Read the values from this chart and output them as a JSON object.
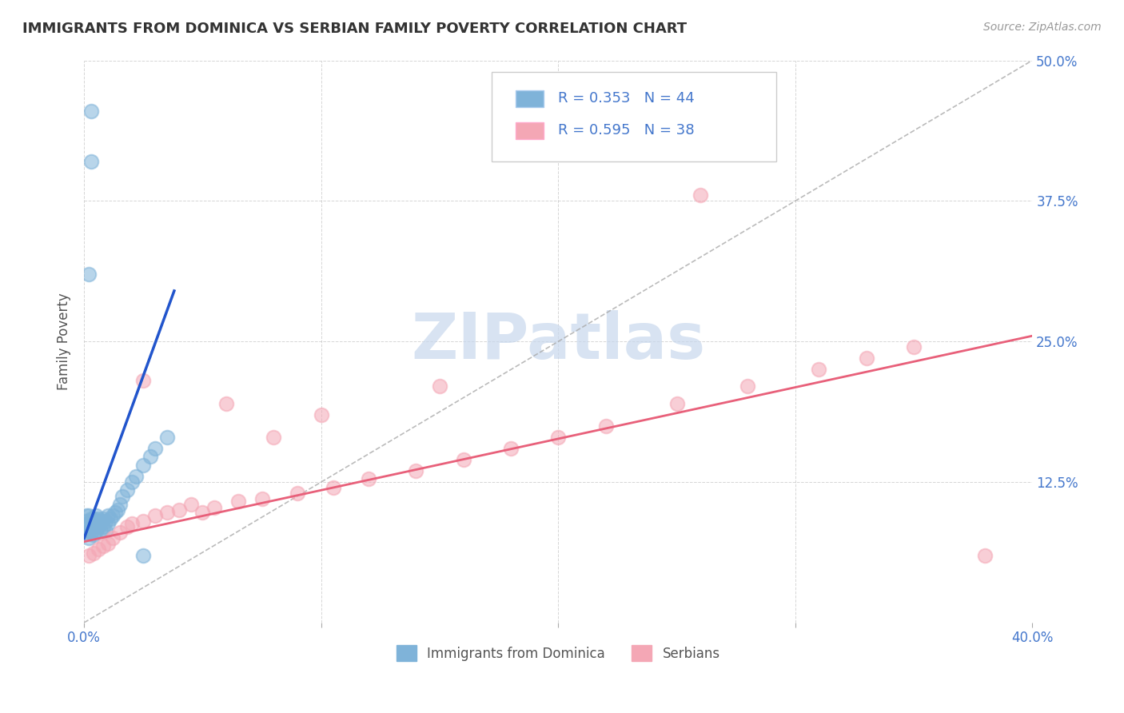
{
  "title": "IMMIGRANTS FROM DOMINICA VS SERBIAN FAMILY POVERTY CORRELATION CHART",
  "source": "Source: ZipAtlas.com",
  "ylabel": "Family Poverty",
  "xlim": [
    0,
    0.4
  ],
  "ylim": [
    0,
    0.5
  ],
  "xticks": [
    0.0,
    0.1,
    0.2,
    0.3,
    0.4
  ],
  "xtick_labels": [
    "0.0%",
    "",
    "",
    "",
    "40.0%"
  ],
  "yticks": [
    0.0,
    0.125,
    0.25,
    0.375,
    0.5
  ],
  "ytick_labels_right": [
    "",
    "12.5%",
    "25.0%",
    "37.5%",
    "50.0%"
  ],
  "series1_label": "Immigrants from Dominica",
  "series1_R": "0.353",
  "series1_N": "44",
  "series1_color": "#7FB3D9",
  "series2_label": "Serbians",
  "series2_R": "0.595",
  "series2_N": "38",
  "series2_color": "#F4A7B5",
  "legend_text_color": "#4477CC",
  "watermark_color": "#C8D8ED",
  "background_color": "#FFFFFF",
  "grid_color": "#BBBBBB",
  "blue_trend_x": [
    0.0,
    0.038
  ],
  "blue_trend_y": [
    0.075,
    0.295
  ],
  "pink_trend_x": [
    0.0,
    0.4
  ],
  "pink_trend_y": [
    0.072,
    0.255
  ],
  "diag_line_x": [
    0.0,
    0.4
  ],
  "diag_line_y": [
    0.0,
    0.5
  ],
  "dominica_x": [
    0.001,
    0.001,
    0.001,
    0.001,
    0.002,
    0.002,
    0.002,
    0.002,
    0.003,
    0.003,
    0.003,
    0.004,
    0.004,
    0.004,
    0.005,
    0.005,
    0.005,
    0.006,
    0.006,
    0.007,
    0.007,
    0.008,
    0.008,
    0.009,
    0.009,
    0.01,
    0.01,
    0.011,
    0.012,
    0.013,
    0.014,
    0.015,
    0.016,
    0.018,
    0.02,
    0.022,
    0.025,
    0.028,
    0.03,
    0.035,
    0.002,
    0.003,
    0.003,
    0.025
  ],
  "dominica_y": [
    0.08,
    0.085,
    0.09,
    0.095,
    0.075,
    0.082,
    0.088,
    0.095,
    0.08,
    0.085,
    0.092,
    0.078,
    0.085,
    0.092,
    0.082,
    0.088,
    0.095,
    0.085,
    0.092,
    0.082,
    0.09,
    0.085,
    0.092,
    0.082,
    0.09,
    0.088,
    0.095,
    0.092,
    0.095,
    0.098,
    0.1,
    0.105,
    0.112,
    0.118,
    0.125,
    0.13,
    0.14,
    0.148,
    0.155,
    0.165,
    0.31,
    0.41,
    0.455,
    0.06
  ],
  "serbian_x": [
    0.002,
    0.004,
    0.006,
    0.008,
    0.01,
    0.012,
    0.015,
    0.018,
    0.02,
    0.025,
    0.03,
    0.035,
    0.04,
    0.045,
    0.05,
    0.055,
    0.065,
    0.075,
    0.09,
    0.105,
    0.12,
    0.14,
    0.16,
    0.18,
    0.2,
    0.22,
    0.25,
    0.28,
    0.31,
    0.33,
    0.35,
    0.025,
    0.06,
    0.08,
    0.1,
    0.15,
    0.26,
    0.38
  ],
  "serbian_y": [
    0.06,
    0.062,
    0.065,
    0.068,
    0.07,
    0.075,
    0.08,
    0.085,
    0.088,
    0.09,
    0.095,
    0.098,
    0.1,
    0.105,
    0.098,
    0.102,
    0.108,
    0.11,
    0.115,
    0.12,
    0.128,
    0.135,
    0.145,
    0.155,
    0.165,
    0.175,
    0.195,
    0.21,
    0.225,
    0.235,
    0.245,
    0.215,
    0.195,
    0.165,
    0.185,
    0.21,
    0.38,
    0.06
  ]
}
